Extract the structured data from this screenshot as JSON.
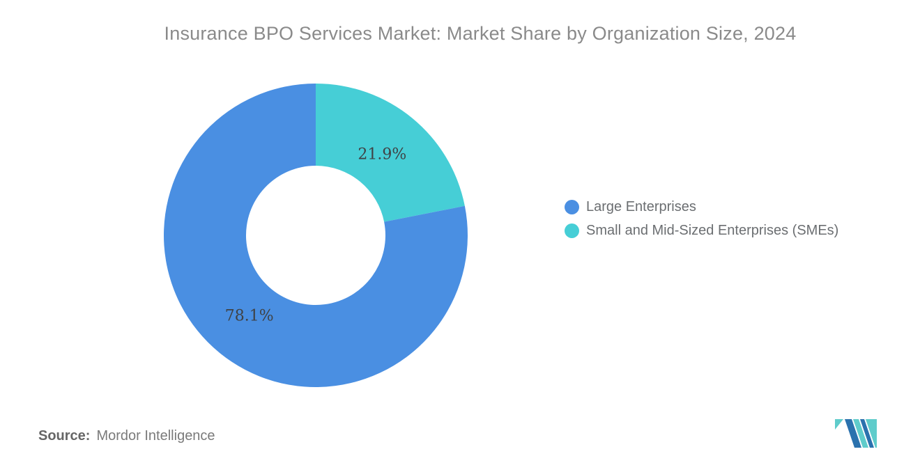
{
  "chart_data": {
    "type": "pie",
    "subtype": "donut",
    "title": "Insurance BPO Services Market: Market Share by Organization Size, 2024",
    "slices": [
      {
        "label": "Large Enterprises",
        "value": 78.1,
        "display": "78.1%",
        "color": "#4A8FE2"
      },
      {
        "label": "Small and Mid-Sized Enterprises (SMEs)",
        "value": 21.9,
        "display": "21.9%",
        "color": "#46CED6"
      }
    ],
    "clockwise_order": [
      "Small and Mid-Sized Enterprises (SMEs)",
      "Large Enterprises"
    ],
    "start_angle": "top",
    "inner_radius_ratio": 0.46,
    "legend_position": "right",
    "label_color": "#3F4245",
    "title_color": "#8A8A8A"
  },
  "source": {
    "label": "Source:",
    "text": "Mordor Intelligence"
  },
  "logo": {
    "name": "mordor-intelligence-logo",
    "blue": "#2B72AE",
    "teal": "#5FCCCB"
  }
}
